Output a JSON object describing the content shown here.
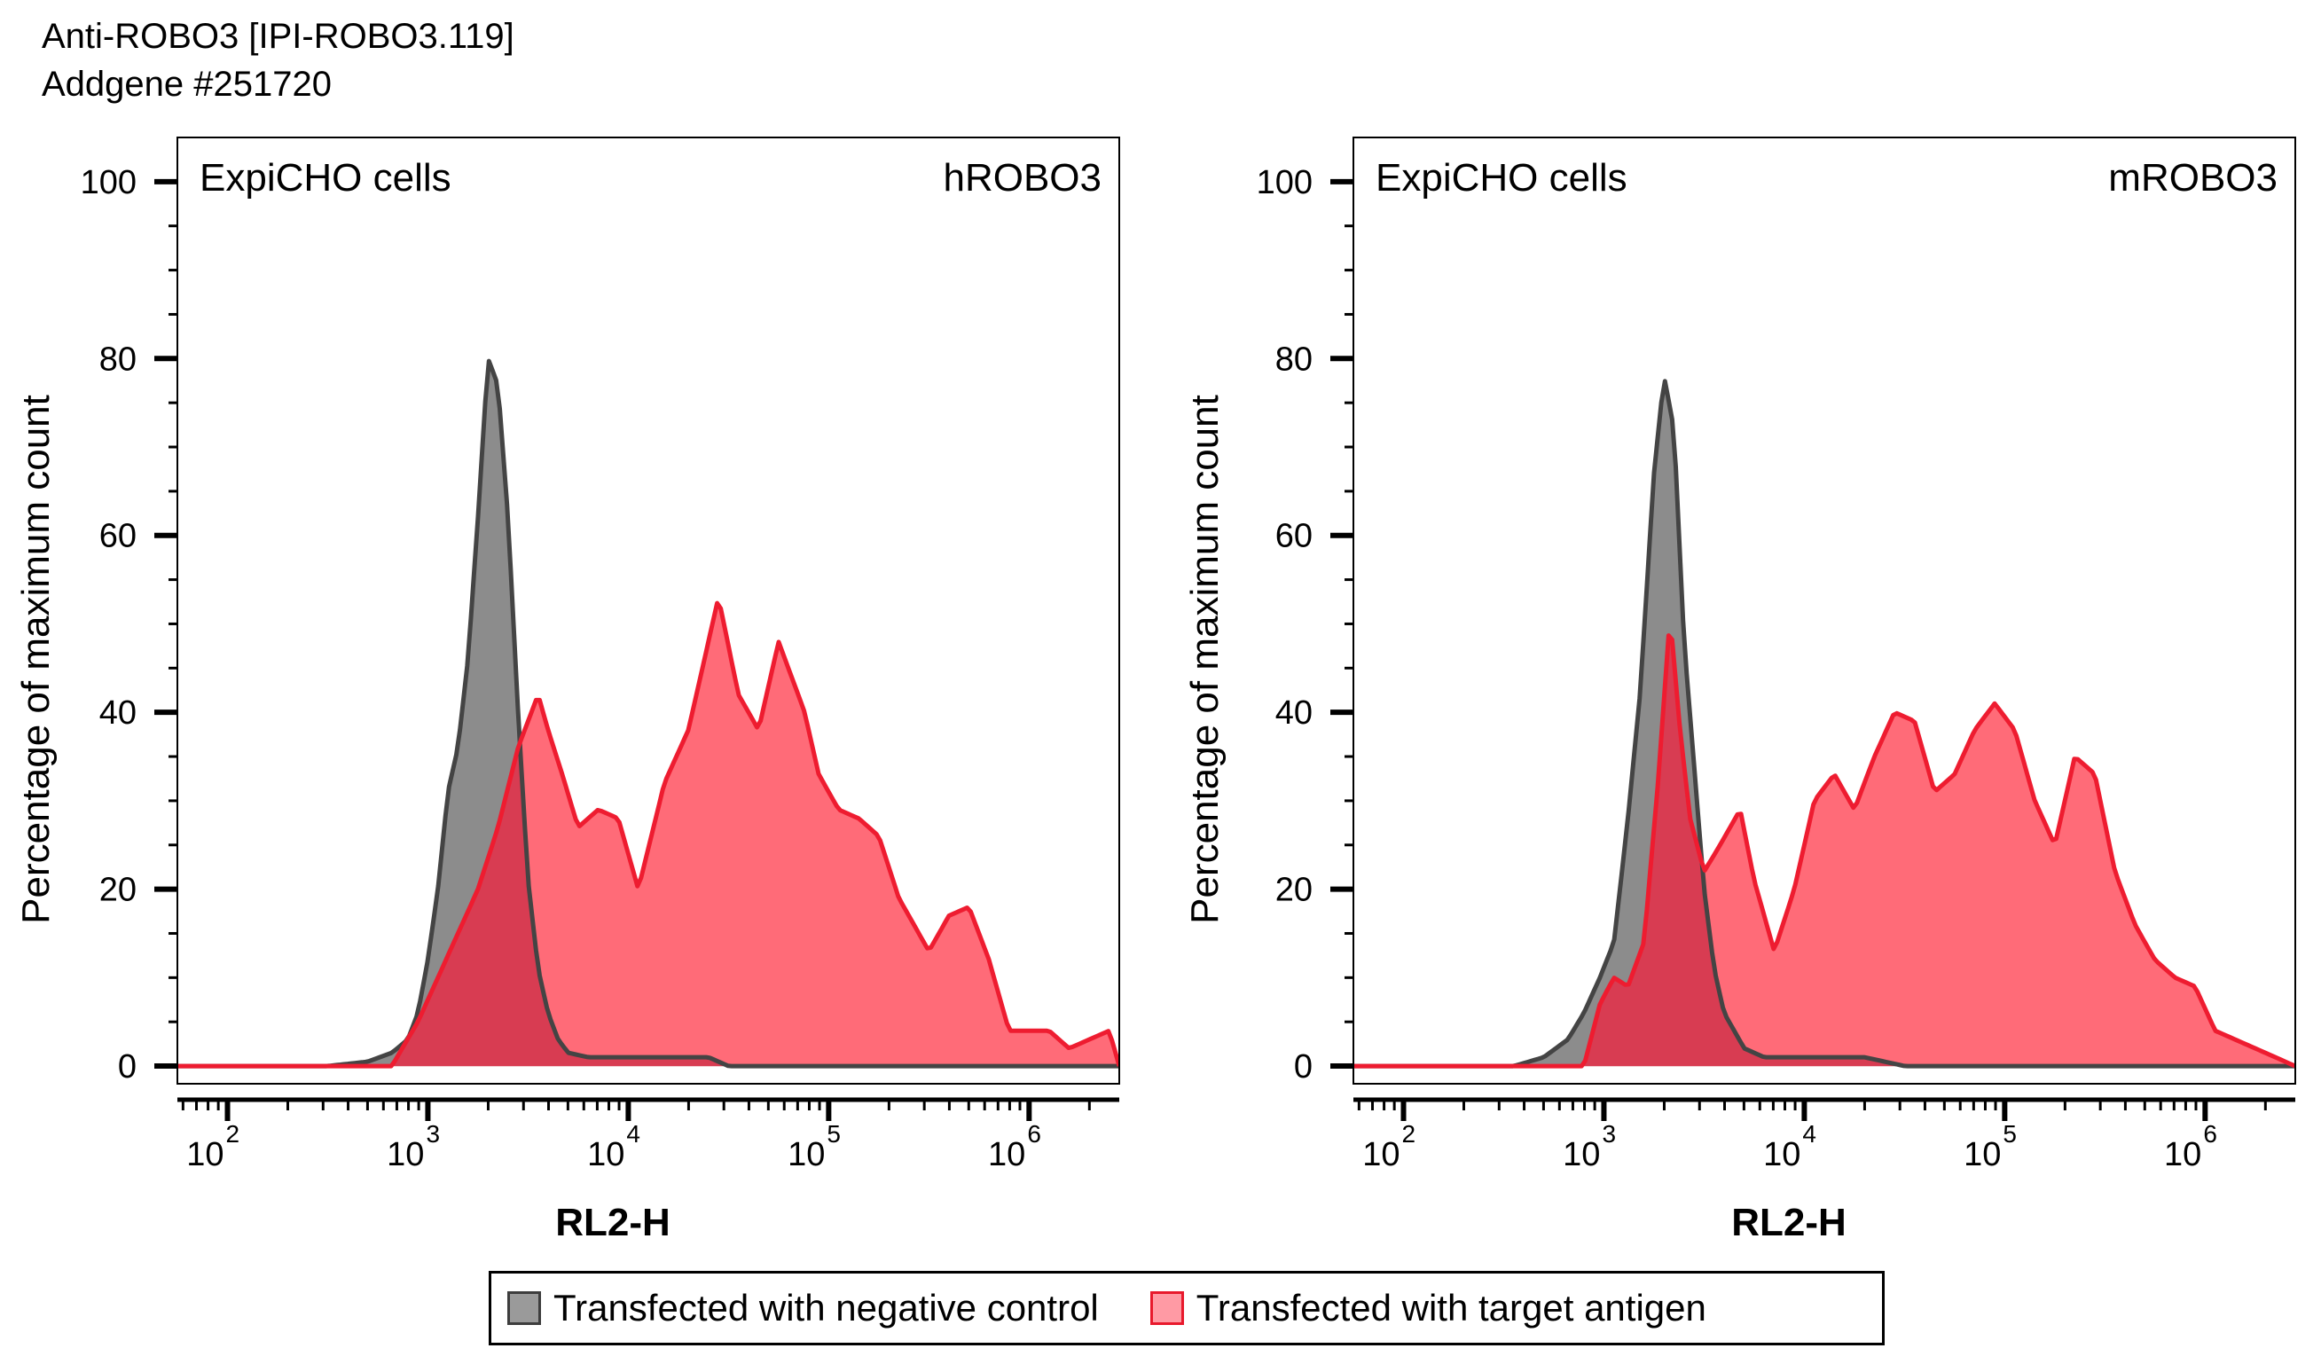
{
  "figure": {
    "title_line1": "Anti-ROBO3 [IPI-ROBO3.119]",
    "title_line2": "Addgene #251720"
  },
  "colors": {
    "control_fill": "#8c8c8c",
    "control_stroke": "#444444",
    "target_fill": "#ff6b78",
    "target_stroke": "#ee1c30",
    "overlap_fill": "#d83c52"
  },
  "legend": {
    "control_label": "Transfected with negative control",
    "target_label": "Transfected with target antigen"
  },
  "chart_data": [
    {
      "type": "area",
      "panel_label_left": "ExpiCHO cells",
      "panel_label_right": "hROBO3",
      "xlabel": "RL2-H",
      "ylabel": "Percentage of maximum count",
      "x_scale": "log10",
      "xlim_log10": [
        1.75,
        6.45
      ],
      "ylim": [
        -2,
        105
      ],
      "y_ticks": [
        0,
        20,
        40,
        60,
        80,
        100
      ],
      "x_ticks": [
        {
          "base": "10",
          "exp": "2",
          "value": 2
        },
        {
          "base": "10",
          "exp": "3",
          "value": 3
        },
        {
          "base": "10",
          "exp": "4",
          "value": 4
        },
        {
          "base": "10",
          "exp": "5",
          "value": 5
        },
        {
          "base": "10",
          "exp": "6",
          "value": 6
        }
      ],
      "series": [
        {
          "name": "Transfected with negative control",
          "log10_x": [
            1.75,
            2.5,
            2.7,
            2.82,
            2.9,
            2.95,
            3.0,
            3.05,
            3.1,
            3.15,
            3.2,
            3.25,
            3.3,
            3.35,
            3.4,
            3.45,
            3.5,
            3.55,
            3.6,
            3.65,
            3.7,
            3.8,
            3.9,
            4.0,
            4.2,
            4.4,
            4.5
          ],
          "values": [
            0,
            0,
            0.5,
            1.5,
            3,
            6,
            12,
            20,
            31,
            36,
            46,
            62,
            80,
            77,
            62,
            40,
            21,
            11,
            6,
            3,
            1.5,
            1,
            1,
            1,
            1,
            1,
            0
          ]
        },
        {
          "name": "Transfected with target antigen",
          "log10_x": [
            1.75,
            2.82,
            2.95,
            3.05,
            3.15,
            3.25,
            3.35,
            3.45,
            3.55,
            3.6,
            3.67,
            3.75,
            3.85,
            3.95,
            4.05,
            4.18,
            4.3,
            4.45,
            4.55,
            4.65,
            4.75,
            4.88,
            4.95,
            5.05,
            5.15,
            5.25,
            5.35,
            5.5,
            5.6,
            5.7,
            5.8,
            5.9,
            6.0,
            6.1,
            6.2,
            6.3,
            6.4,
            6.45
          ],
          "values": [
            0,
            0,
            5,
            10,
            15,
            20,
            27,
            36,
            42,
            38,
            33,
            27,
            29,
            28,
            20,
            32,
            38,
            53,
            42,
            38,
            48,
            40,
            33,
            29,
            28,
            26,
            19,
            13,
            17,
            18,
            12,
            4,
            4,
            4,
            2,
            3,
            4,
            0
          ]
        }
      ]
    },
    {
      "type": "area",
      "panel_label_left": "ExpiCHO cells",
      "panel_label_right": "mROBO3",
      "xlabel": "RL2-H",
      "ylabel": "Percentage of maximum count",
      "x_scale": "log10",
      "xlim_log10": [
        1.75,
        6.45
      ],
      "ylim": [
        -2,
        105
      ],
      "y_ticks": [
        0,
        20,
        40,
        60,
        80,
        100
      ],
      "x_ticks": [
        {
          "base": "10",
          "exp": "2",
          "value": 2
        },
        {
          "base": "10",
          "exp": "3",
          "value": 3
        },
        {
          "base": "10",
          "exp": "4",
          "value": 4
        },
        {
          "base": "10",
          "exp": "5",
          "value": 5
        },
        {
          "base": "10",
          "exp": "6",
          "value": 6
        }
      ],
      "series": [
        {
          "name": "Transfected with negative control",
          "log10_x": [
            1.75,
            2.55,
            2.7,
            2.82,
            2.9,
            2.98,
            3.05,
            3.12,
            3.18,
            3.25,
            3.3,
            3.35,
            3.4,
            3.45,
            3.5,
            3.55,
            3.6,
            3.7,
            3.8,
            4.0,
            4.3,
            4.5
          ],
          "values": [
            0,
            0,
            1,
            3,
            6,
            10,
            14,
            28,
            42,
            67,
            78,
            72,
            48,
            34,
            20,
            11,
            6,
            2,
            1,
            1,
            1,
            0
          ]
        },
        {
          "name": "Transfected with target antigen",
          "log10_x": [
            1.75,
            2.9,
            2.98,
            3.05,
            3.12,
            3.2,
            3.27,
            3.33,
            3.38,
            3.43,
            3.5,
            3.58,
            3.68,
            3.75,
            3.85,
            3.95,
            4.05,
            4.15,
            4.25,
            4.35,
            4.45,
            4.55,
            4.65,
            4.75,
            4.85,
            4.95,
            5.05,
            5.15,
            5.25,
            5.35,
            5.45,
            5.55,
            5.65,
            5.75,
            5.85,
            5.95,
            6.05,
            6.15,
            6.25,
            6.35,
            6.45
          ],
          "values": [
            0,
            0,
            7,
            10,
            9,
            14,
            32,
            51,
            38,
            28,
            22,
            25,
            29,
            21,
            13,
            20,
            30,
            33,
            29,
            35,
            40,
            39,
            31,
            33,
            38,
            41,
            38,
            30,
            25,
            35,
            33,
            22,
            16,
            12,
            10,
            9,
            4,
            3,
            2,
            1,
            0
          ]
        }
      ]
    }
  ]
}
